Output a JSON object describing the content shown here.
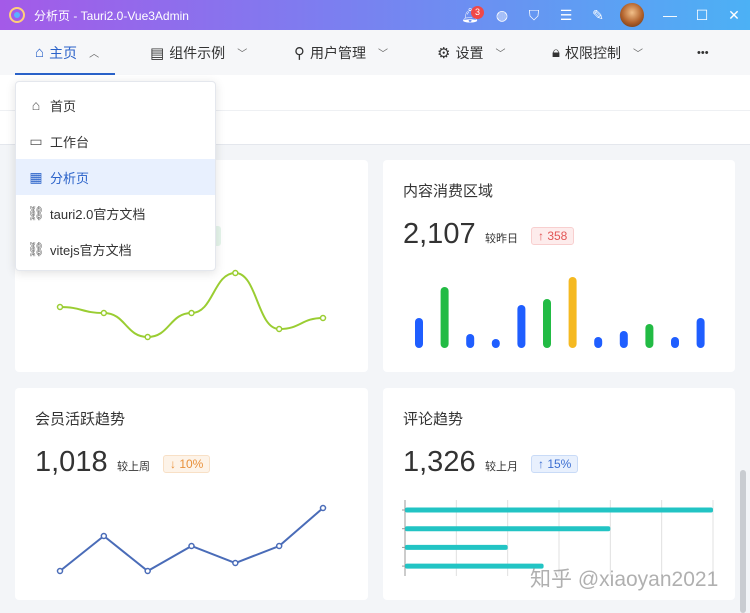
{
  "window": {
    "title": "分析页 - Tauri2.0-Vue3Admin",
    "notification_count": "3"
  },
  "nav": {
    "items": [
      {
        "label": "主页",
        "icon": "home-icon",
        "active": true
      },
      {
        "label": "组件示例",
        "icon": "component-icon"
      },
      {
        "label": "用户管理",
        "icon": "user-icon"
      },
      {
        "label": "设置",
        "icon": "gear-icon"
      },
      {
        "label": "权限控制",
        "icon": "lock-icon"
      }
    ],
    "more": "•••"
  },
  "dropdown": {
    "items": [
      {
        "label": "首页",
        "icon": "home-icon"
      },
      {
        "label": "工作台",
        "icon": "monitor-icon"
      },
      {
        "label": "分析页",
        "icon": "presentation-icon",
        "active": true
      },
      {
        "label": "tauri2.0官方文档",
        "icon": "link-icon"
      },
      {
        "label": "vitejs官方文档",
        "icon": "link-icon"
      }
    ]
  },
  "cards": {
    "content": {
      "title": "内容消费区域",
      "value": "2,107",
      "compare": "较昨日",
      "tag": "↑ 358",
      "tag_color": "#e25555"
    },
    "members": {
      "title": "会员活跃趋势",
      "value": "1,018",
      "compare": "较上周",
      "tag": "↓ 10%",
      "tag_color": "#e8903a"
    },
    "comments": {
      "title": "评论趋势",
      "value": "1,326",
      "compare": "较上月",
      "tag": "↑ 15%",
      "tag_color": "#3d6fd1"
    }
  },
  "chart_data": [
    {
      "type": "line",
      "smooth": true,
      "values": [
        65,
        59,
        35,
        59,
        99,
        43,
        54
      ],
      "color": "#9acd32"
    },
    {
      "type": "bar",
      "values": [
        30,
        61,
        14,
        9,
        43,
        49,
        71,
        11,
        17,
        24,
        11,
        30
      ],
      "colors": [
        "#1f5eff",
        "#22bb44",
        "#1f5eff",
        "#1f5eff",
        "#1f5eff",
        "#22bb44",
        "#f5b921",
        "#1f5eff",
        "#1f5eff",
        "#22bb44",
        "#1f5eff",
        "#1f5eff"
      ]
    },
    {
      "type": "line",
      "values": [
        10,
        45,
        10,
        35,
        18,
        35,
        73
      ],
      "color": "#4a6cb8"
    },
    {
      "type": "bar",
      "orientation": "horizontal",
      "values": [
        600,
        400,
        200,
        270
      ],
      "xlim": [
        0,
        600
      ],
      "grid": true,
      "color": "#22c4c4"
    }
  ],
  "watermark": "知乎 @xiaoyan2021"
}
